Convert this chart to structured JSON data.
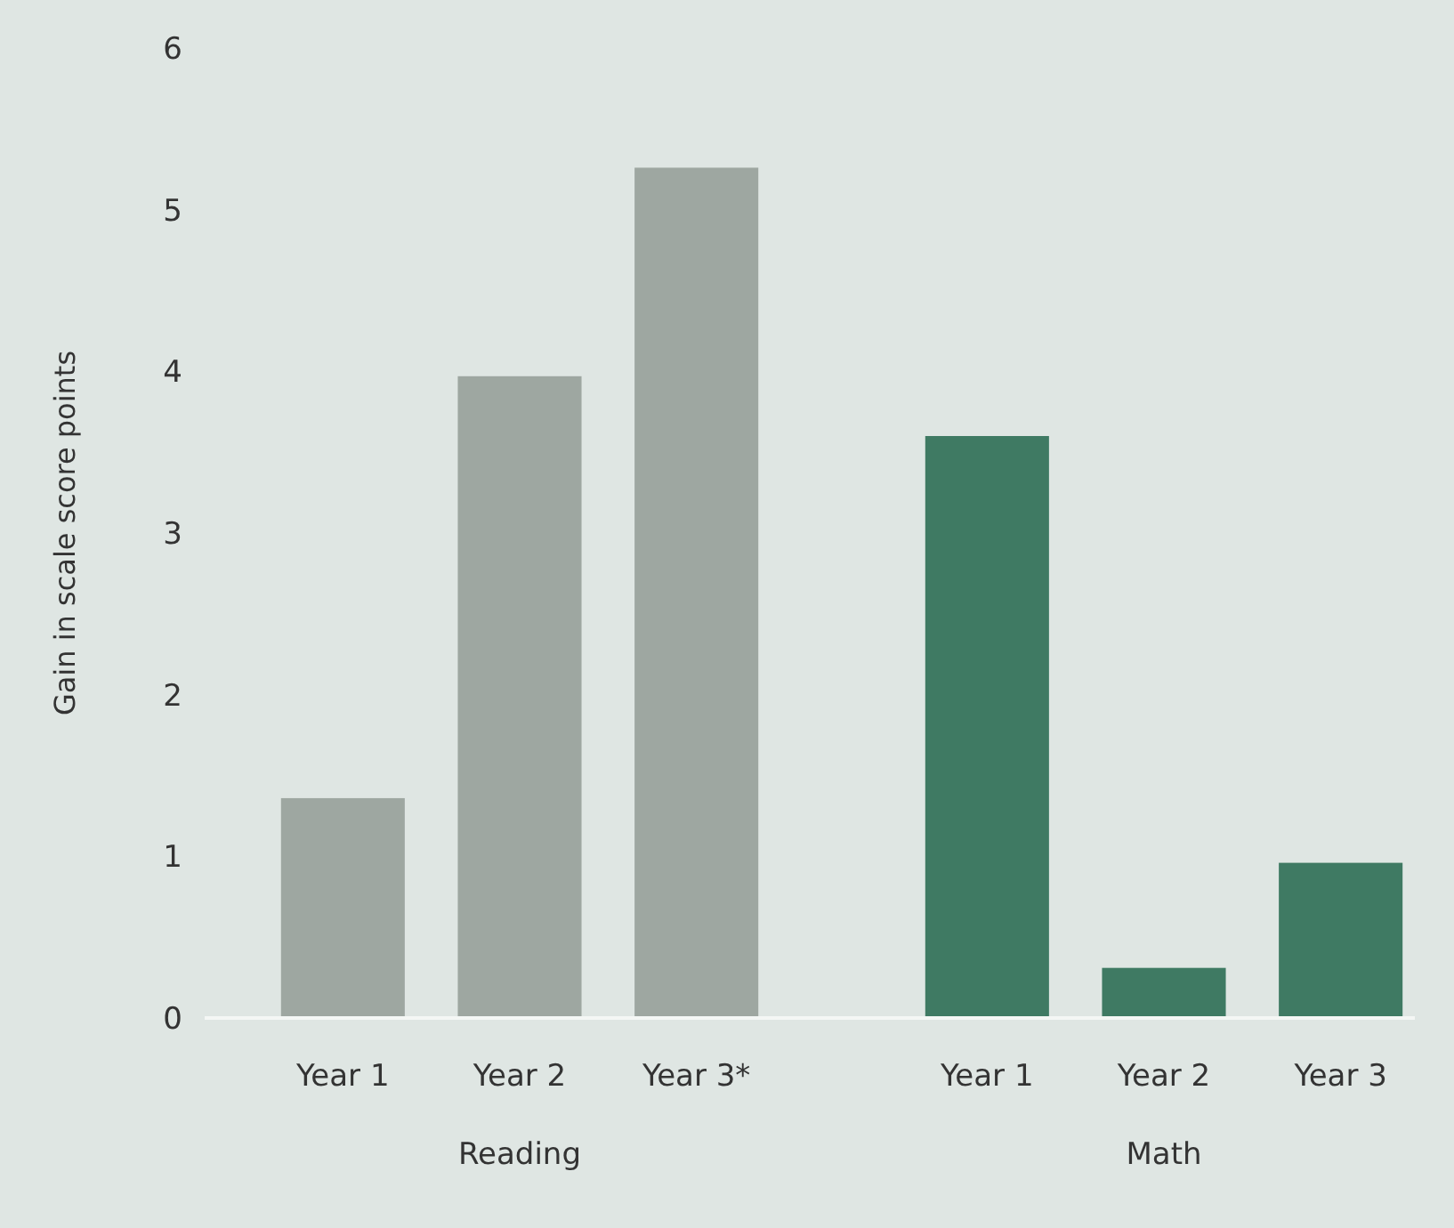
{
  "chart_data": {
    "type": "bar",
    "ylabel": "Gain in scale score points",
    "categories": [
      "Year 1",
      "Year 2",
      "Year 3*",
      "Year 1",
      "Year 2",
      "Year 3"
    ],
    "annotations": [
      "Reading",
      "Math"
    ],
    "series": [
      {
        "color": "#9ea7a1",
        "values": [
          1.36,
          3.97,
          5.26,
          null,
          null,
          null
        ]
      },
      {
        "color": "#3f7a63",
        "values": [
          null,
          null,
          null,
          3.6,
          0.31,
          0.96
        ]
      }
    ],
    "ylim": [
      0,
      6
    ],
    "yticks": [
      0,
      1,
      2,
      3,
      4,
      5,
      6
    ],
    "grid": false,
    "legend": false
  }
}
